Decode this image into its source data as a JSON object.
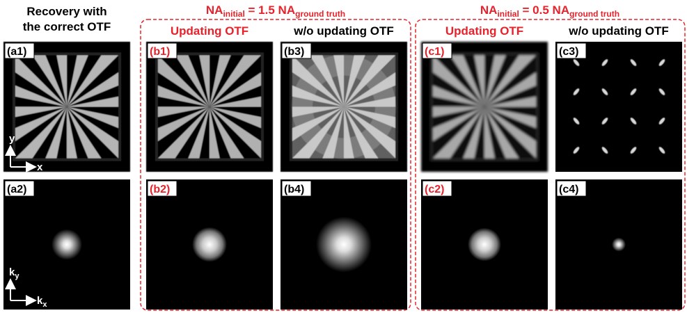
{
  "header": {
    "left_title": [
      "Recovery with",
      "the correct OTF"
    ]
  },
  "groups": [
    {
      "title": {
        "base": "NA",
        "sub1": "initial",
        "mid": " = 1.5 NA",
        "sub2": "ground truth"
      },
      "columns": [
        "Updating OTF",
        "w/o updating OTF"
      ]
    },
    {
      "title": {
        "base": "NA",
        "sub1": "initial",
        "mid": " = 0.5 NA",
        "sub2": "ground truth"
      },
      "columns": [
        "Updating OTF",
        "w/o updating OTF"
      ]
    }
  ],
  "panels": {
    "top": [
      "(a1)",
      "(b1)",
      "(b3)",
      "(c1)",
      "(c3)"
    ],
    "bottom": [
      "(a2)",
      "(b2)",
      "(b4)",
      "(c2)",
      "(c4)"
    ]
  },
  "axes": {
    "top": {
      "vertical": "y",
      "horizontal": "x"
    },
    "bottom": {
      "vertical": {
        "base": "k",
        "sub": "y"
      },
      "horizontal": {
        "base": "k",
        "sub": "x"
      }
    }
  }
}
